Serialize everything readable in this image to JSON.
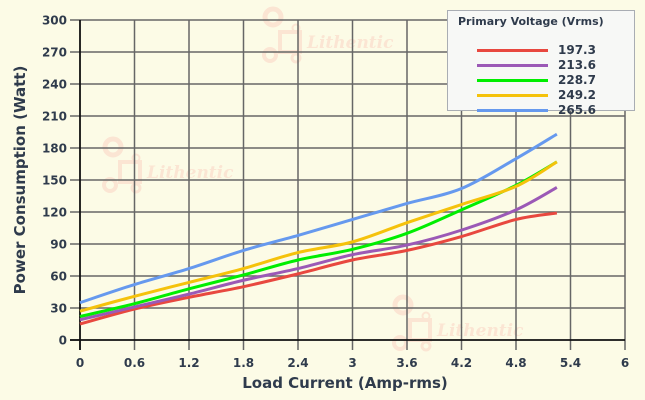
{
  "chart_data": {
    "type": "line",
    "title": "",
    "xlabel": "Load Current (Amp-rms)",
    "ylabel": "Power Consumption (Watt)",
    "xlim": [
      0,
      6
    ],
    "ylim": [
      0,
      300
    ],
    "x_ticks": [
      "0",
      "0.6",
      "1.2",
      "1.8",
      "2.4",
      "3",
      "3.6",
      "4.2",
      "4.8",
      "5.4",
      "6"
    ],
    "y_ticks": [
      "0",
      "30",
      "60",
      "90",
      "120",
      "150",
      "180",
      "210",
      "240",
      "270",
      "300"
    ],
    "grid": true,
    "legend_position": "top-right",
    "legend_title": "Primary Voltage (Vrms)",
    "x": [
      0,
      0.6,
      1.2,
      1.8,
      2.4,
      3.0,
      3.6,
      4.2,
      4.8,
      5.25
    ],
    "series": [
      {
        "name": "197.3",
        "color": "#e8483f",
        "values": [
          15,
          29,
          40,
          50,
          62,
          75,
          84,
          97,
          113,
          119
        ]
      },
      {
        "name": "213.6",
        "color": "#9b59b6",
        "values": [
          19,
          31,
          43,
          56,
          67,
          80,
          89,
          103,
          122,
          143
        ]
      },
      {
        "name": "228.7",
        "color": "#00ee00",
        "values": [
          22,
          34,
          48,
          61,
          75,
          85,
          100,
          122,
          145,
          167
        ]
      },
      {
        "name": "249.2",
        "color": "#f5c20b",
        "values": [
          27,
          41,
          54,
          67,
          82,
          92,
          110,
          127,
          144,
          167
        ]
      },
      {
        "name": "265.6",
        "color": "#6699ee",
        "values": [
          35,
          52,
          67,
          84,
          98,
          113,
          128,
          142,
          170,
          193
        ]
      }
    ]
  },
  "watermark": {
    "text": "Lithentic"
  }
}
